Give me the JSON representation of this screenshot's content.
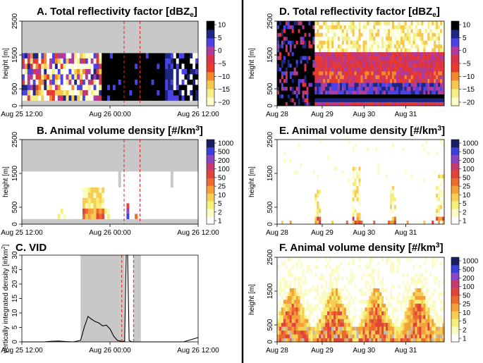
{
  "chart_data": [
    {
      "panel": "A",
      "type": "heatmap",
      "title": "A. Total reflectivity factor [dBZ",
      "title_sub": "e",
      "title_end": "]",
      "ylabel": "height [m]",
      "yticks": [
        "0",
        "500",
        "1500",
        "2500"
      ],
      "ylim": [
        0,
        2500
      ],
      "xticks": [
        "Aug 25 12:00",
        "Aug 26 00:00",
        "Aug 26 12:00"
      ],
      "colorbar": {
        "labels": [
          "10",
          "5",
          "0",
          "−5",
          "−10",
          "−15",
          "−20"
        ],
        "min": -20,
        "max": 10
      }
    },
    {
      "panel": "B",
      "type": "heatmap",
      "title": "B. Animal volume density [#/km",
      "title_sup": "3",
      "title_end": "]",
      "ylabel": "height [m]",
      "yticks": [
        "0",
        "500",
        "1500",
        "2500"
      ],
      "ylim": [
        0,
        2500
      ],
      "xticks": [
        "Aug 25 12:00",
        "Aug 26 00:00",
        "Aug 26 12:00"
      ],
      "colorbar": {
        "labels": [
          "1000",
          "500",
          "200",
          "100",
          "50",
          "25",
          "10",
          "5",
          "2",
          "1"
        ]
      }
    },
    {
      "panel": "C",
      "type": "line",
      "title": "C. VID",
      "ylabel": "vertically integrated density [#/km",
      "ylabel_sup": "2",
      "ylabel_end": "]",
      "yticks": [
        "0",
        "5",
        "10",
        "15",
        "20",
        "25",
        "30"
      ],
      "ylim": [
        0,
        30
      ],
      "xticks": [
        "Aug 25 12:00",
        "Aug 26 00:00",
        "Aug 26 12:00"
      ],
      "x_hours": [
        0,
        3,
        4,
        5,
        6,
        7,
        8,
        8.5,
        9,
        9.5,
        10,
        10.5,
        11,
        11.5,
        12,
        12.5,
        13,
        13.5,
        14,
        14.2,
        14.4,
        14.6,
        14.8,
        15,
        16,
        18,
        20,
        22,
        24
      ],
      "y": [
        0,
        0,
        0.2,
        0.3,
        0.1,
        0,
        0.5,
        5,
        8.8,
        7.8,
        7,
        6.5,
        5.5,
        5.8,
        4.5,
        2,
        0.5,
        0.2,
        0.2,
        30,
        30,
        0.5,
        0.2,
        0,
        0,
        0,
        0,
        0,
        1.5
      ],
      "shaded_hours": [
        [
          8,
          14
        ],
        [
          15.2,
          16.2
        ]
      ],
      "dashed_hours": [
        13.6,
        15.2
      ]
    },
    {
      "panel": "D",
      "type": "heatmap",
      "title": "D. Total reflectivity factor [dBZ",
      "title_sub": "e",
      "title_end": "]",
      "ylabel": "height [m]",
      "yticks": [
        "0",
        "500",
        "1500",
        "2500"
      ],
      "ylim": [
        0,
        2500
      ],
      "xticks": [
        "Aug 28",
        "Aug 29",
        "Aug 30",
        "Aug 31"
      ],
      "colorbar": {
        "labels": [
          "10",
          "5",
          "0",
          "−5",
          "−10",
          "−15",
          "−20"
        ],
        "min": -20,
        "max": 10
      }
    },
    {
      "panel": "E",
      "type": "heatmap",
      "title": "E. Animal volume density [#/km",
      "title_sup": "3",
      "title_end": "]",
      "ylabel": "height [m]",
      "yticks": [
        "0",
        "500",
        "1500",
        "2500"
      ],
      "ylim": [
        0,
        2500
      ],
      "xticks": [
        "Aug 28",
        "Aug 29",
        "Aug 30",
        "Aug 31"
      ],
      "colorbar": {
        "labels": [
          "1000",
          "500",
          "200",
          "100",
          "50",
          "25",
          "10",
          "5",
          "2",
          "1"
        ]
      }
    },
    {
      "panel": "F",
      "type": "heatmap",
      "title": "F. Animal volume density [#/km",
      "title_sup": "3",
      "title_end": "]",
      "ylabel": "height [m]",
      "yticks": [
        "0",
        "500",
        "1500",
        "2500"
      ],
      "ylim": [
        0,
        2500
      ],
      "xticks": [
        "Aug 28",
        "Aug 29",
        "Aug 30",
        "Aug 31"
      ],
      "colorbar": {
        "labels": [
          "1000",
          "500",
          "200",
          "100",
          "50",
          "25",
          "10",
          "5",
          "2",
          "1"
        ]
      }
    }
  ],
  "colors": {
    "masked": "#c8c8c8",
    "grid_line": "#dddddd",
    "dashed_line": "#e8202a",
    "scale_dbz": [
      "#fdfec8",
      "#f3f08a",
      "#f7c84e",
      "#f2892f",
      "#e63b2e",
      "#d9344b",
      "#b13b9a",
      "#4b43e3",
      "#1e2680",
      "#000000"
    ],
    "scale_density": [
      "#ffffff",
      "#fafcc4",
      "#f5f07a",
      "#f7cd55",
      "#f3a03a",
      "#ea6a30",
      "#e0443a",
      "#c43c6e",
      "#8a44c4",
      "#3a40d8",
      "#1a1f60"
    ]
  }
}
